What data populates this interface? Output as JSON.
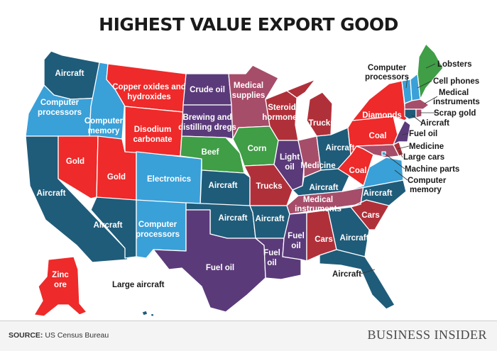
{
  "title": "HIGHEST VALUE EXPORT GOOD",
  "source_label": "SOURCE:",
  "source_text": "US Census Bureau",
  "brand": "BUSINESS INSIDER",
  "colors": {
    "aircraft": "#1f5c7a",
    "computer": "#3aa0d8",
    "red": "#ee2a2a",
    "darkred": "#b0303a",
    "purple": "#5b3a7a",
    "mauve": "#a64d6a",
    "green": "#3f9e46"
  },
  "states": [
    {
      "id": "WA",
      "label": "Aircraft"
    },
    {
      "id": "OR",
      "label": "Computer processors"
    },
    {
      "id": "CA",
      "label": "Aircraft"
    },
    {
      "id": "ID",
      "label": "Computer memory"
    },
    {
      "id": "NV",
      "label": "Gold"
    },
    {
      "id": "UT",
      "label": "Gold"
    },
    {
      "id": "AZ",
      "label": "Aircraft"
    },
    {
      "id": "MT",
      "label": "Copper oxides and hydroxides"
    },
    {
      "id": "WY",
      "label": "Disodium carbonate"
    },
    {
      "id": "CO",
      "label": "Electronics"
    },
    {
      "id": "NM",
      "label": "Computer processors"
    },
    {
      "id": "ND",
      "label": "Crude oil"
    },
    {
      "id": "SD",
      "label": "Brewing and distilling dregs"
    },
    {
      "id": "NE",
      "label": "Beef"
    },
    {
      "id": "KS",
      "label": "Aircraft"
    },
    {
      "id": "OK",
      "label": "Aircraft"
    },
    {
      "id": "TX",
      "label": "Fuel oil"
    },
    {
      "id": "MN",
      "label": "Medical supplies"
    },
    {
      "id": "IA",
      "label": "Corn"
    },
    {
      "id": "MO",
      "label": "Trucks"
    },
    {
      "id": "AR",
      "label": "Aircraft"
    },
    {
      "id": "LA",
      "label": "Fuel oil"
    },
    {
      "id": "WI",
      "label": "Steroid hormones"
    },
    {
      "id": "IL",
      "label": "Light oil"
    },
    {
      "id": "MI",
      "label": "Trucks"
    },
    {
      "id": "IN",
      "label": "Medicine"
    },
    {
      "id": "OH",
      "label": "Aircraft"
    },
    {
      "id": "KY",
      "label": "Aircraft"
    },
    {
      "id": "TN",
      "label": "Medical instruments"
    },
    {
      "id": "MS",
      "label": "Fuel oil"
    },
    {
      "id": "AL",
      "label": "Cars"
    },
    {
      "id": "GA",
      "label": "Aircraft"
    },
    {
      "id": "FL",
      "label": "Aircraft"
    },
    {
      "id": "SC",
      "label": "Cars"
    },
    {
      "id": "NC",
      "label": "Aircraft"
    },
    {
      "id": "VA",
      "label": "Computer memory"
    },
    {
      "id": "WV",
      "label": "Coal"
    },
    {
      "id": "PA",
      "label": "Coal"
    },
    {
      "id": "NY",
      "label": "Diamonds"
    },
    {
      "id": "MD",
      "label": "Medicine"
    },
    {
      "id": "DE",
      "label": "Large cars"
    },
    {
      "id": "NJ",
      "label": "Fuel oil"
    },
    {
      "id": "DC",
      "label": "Machine parts"
    },
    {
      "id": "VT",
      "label": "Computer processors"
    },
    {
      "id": "NH",
      "label": "Cell phones"
    },
    {
      "id": "ME",
      "label": "Lobsters"
    },
    {
      "id": "MA",
      "label": "Medical instruments"
    },
    {
      "id": "RI",
      "label": "Scrap gold"
    },
    {
      "id": "CT",
      "label": "Aircraft"
    },
    {
      "id": "AK",
      "label": "Zinc ore"
    },
    {
      "id": "HI",
      "label": "Large aircraft"
    }
  ]
}
